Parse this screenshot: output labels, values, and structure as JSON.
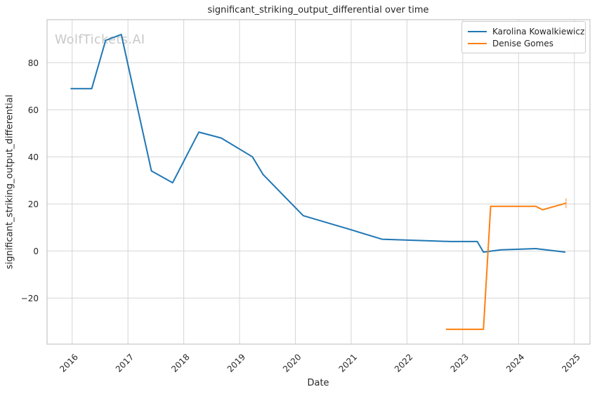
{
  "watermark": "WolfTickets.AI",
  "colors": {
    "series_blue": "#1f77b4",
    "series_orange": "#ff7f0e",
    "grid": "#d5d5d5",
    "spine": "#c6c6c6",
    "text": "#262626",
    "watermark": "#c8c8c8",
    "background": "#ffffff"
  },
  "chart_data": {
    "type": "line",
    "title": "significant_striking_output_differential over time",
    "xlabel": "Date",
    "ylabel": "significant_striking_output_differential",
    "grid": true,
    "legend_position": "upper right",
    "xlim": [
      2015.55,
      2025.28
    ],
    "ylim": [
      -39.6,
      98.3
    ],
    "x_ticks": [
      2016,
      2017,
      2018,
      2019,
      2020,
      2021,
      2022,
      2023,
      2024,
      2025
    ],
    "y_ticks": [
      80,
      60,
      40,
      20,
      0,
      -20
    ],
    "series": [
      {
        "name": "Karolina Kowalkiewicz",
        "color": "#1f77b4",
        "x": [
          2015.97,
          2016.35,
          2016.6,
          2016.88,
          2017.42,
          2017.8,
          2018.27,
          2018.67,
          2019.23,
          2019.42,
          2020.14,
          2021.0,
          2021.55,
          2022.78,
          2023.26,
          2023.37,
          2023.68,
          2024.31,
          2024.84
        ],
        "y": [
          69,
          69,
          89.5,
          92,
          34,
          29,
          50.5,
          48,
          40,
          32.5,
          15,
          9,
          5,
          4,
          4,
          -0.5,
          0.5,
          1,
          -0.5
        ]
      },
      {
        "name": "Denise Gomes",
        "color": "#ff7f0e",
        "end_tick": true,
        "x": [
          2022.7,
          2023.37,
          2023.5,
          2024.31,
          2024.43,
          2024.85
        ],
        "y": [
          -33.3,
          -33.3,
          19,
          19,
          17.5,
          20.3
        ]
      }
    ]
  }
}
